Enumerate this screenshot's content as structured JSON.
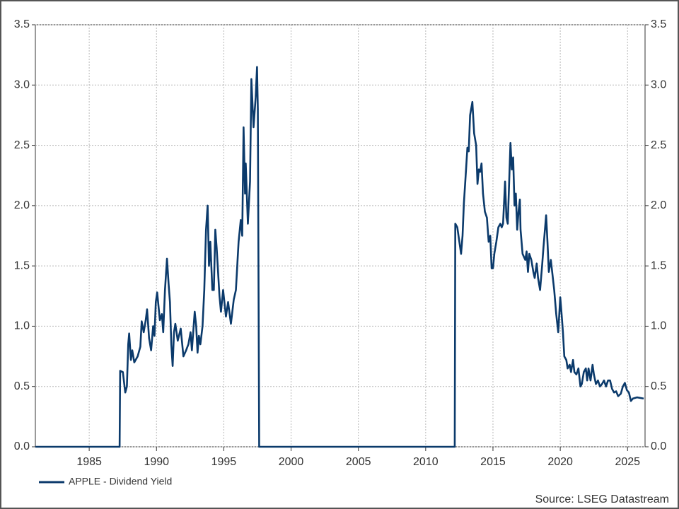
{
  "chart_data": {
    "type": "line",
    "series": [
      {
        "name": "APPLE - Dividend Yield",
        "color": "#0b3a6b",
        "x": [
          1981,
          1987.26,
          1987.3,
          1987.5,
          1987.68,
          1987.8,
          1987.9,
          1987.97,
          1988.1,
          1988.2,
          1988.35,
          1988.6,
          1988.8,
          1988.9,
          1989.05,
          1989.2,
          1989.3,
          1989.45,
          1989.6,
          1989.75,
          1989.85,
          1989.95,
          1990.05,
          1990.25,
          1990.4,
          1990.5,
          1990.63,
          1990.78,
          1990.9,
          1991.0,
          1991.1,
          1991.2,
          1991.3,
          1991.4,
          1991.58,
          1991.8,
          1992.0,
          1992.2,
          1992.37,
          1992.53,
          1992.63,
          1992.84,
          1992.95,
          1993.05,
          1993.15,
          1993.26,
          1993.42,
          1993.55,
          1993.68,
          1993.8,
          1993.9,
          1994.0,
          1994.15,
          1994.26,
          1994.37,
          1994.47,
          1994.68,
          1994.79,
          1994.95,
          1995.16,
          1995.32,
          1995.53,
          1995.74,
          1995.9,
          1996.1,
          1996.26,
          1996.37,
          1996.47,
          1996.58,
          1996.63,
          1996.79,
          1996.95,
          1997.05,
          1997.21,
          1997.37,
          1997.47,
          1997.53,
          1997.63,
          2012.16,
          2012.2,
          2012.35,
          2012.63,
          2012.74,
          2012.84,
          2013.0,
          2013.1,
          2013.2,
          2013.3,
          2013.47,
          2013.6,
          2013.75,
          2013.85,
          2013.95,
          2014.05,
          2014.15,
          2014.26,
          2014.4,
          2014.55,
          2014.68,
          2014.8,
          2014.9,
          2015.0,
          2015.1,
          2015.25,
          2015.4,
          2015.55,
          2015.65,
          2015.75,
          2015.9,
          2016.0,
          2016.1,
          2016.3,
          2016.4,
          2016.5,
          2016.6,
          2016.7,
          2016.8,
          2016.9,
          2017.0,
          2017.05,
          2017.2,
          2017.4,
          2017.5,
          2017.6,
          2017.7,
          2017.85,
          2018.0,
          2018.1,
          2018.25,
          2018.35,
          2018.5,
          2018.65,
          2018.75,
          2018.95,
          2019.05,
          2019.15,
          2019.3,
          2019.4,
          2019.55,
          2019.7,
          2019.85,
          2020.0,
          2020.1,
          2020.2,
          2020.3,
          2020.45,
          2020.55,
          2020.7,
          2020.8,
          2020.95,
          2021.05,
          2021.2,
          2021.35,
          2021.5,
          2021.6,
          2021.75,
          2021.9,
          2022.0,
          2022.1,
          2022.25,
          2022.4,
          2022.5,
          2022.65,
          2022.8,
          2022.95,
          2023.1,
          2023.25,
          2023.4,
          2023.55,
          2023.7,
          2023.85,
          2024.0,
          2024.15,
          2024.3,
          2024.5,
          2024.65,
          2024.8,
          2024.95,
          2025.1,
          2025.25,
          2025.4,
          2025.7,
          2026.2
        ],
        "values": [
          0,
          0,
          0.63,
          0.62,
          0.45,
          0.5,
          0.85,
          0.94,
          0.72,
          0.8,
          0.7,
          0.75,
          0.83,
          1.04,
          0.95,
          1.05,
          1.14,
          0.9,
          0.8,
          1.0,
          0.92,
          1.2,
          1.28,
          1.05,
          1.1,
          0.95,
          1.3,
          1.56,
          1.35,
          1.2,
          0.85,
          0.67,
          0.95,
          1.02,
          0.88,
          0.98,
          0.75,
          0.8,
          0.85,
          0.95,
          0.8,
          1.12,
          1.0,
          0.78,
          0.92,
          0.85,
          1.0,
          1.3,
          1.8,
          2.0,
          1.5,
          1.7,
          1.3,
          1.3,
          1.8,
          1.65,
          1.25,
          1.12,
          1.3,
          1.08,
          1.2,
          1.02,
          1.22,
          1.3,
          1.7,
          1.88,
          1.75,
          2.65,
          2.1,
          2.35,
          1.85,
          2.2,
          3.05,
          2.65,
          2.9,
          3.15,
          2.8,
          0,
          0,
          1.85,
          1.82,
          1.6,
          1.75,
          2.02,
          2.3,
          2.48,
          2.45,
          2.75,
          2.86,
          2.6,
          2.5,
          2.18,
          2.3,
          2.28,
          2.35,
          2.1,
          1.95,
          1.9,
          1.7,
          1.75,
          1.48,
          1.48,
          1.6,
          1.7,
          1.82,
          1.85,
          1.82,
          1.85,
          2.2,
          1.9,
          1.85,
          2.52,
          2.3,
          2.4,
          2.0,
          2.1,
          1.8,
          1.95,
          2.05,
          1.8,
          1.6,
          1.55,
          1.62,
          1.45,
          1.6,
          1.55,
          1.45,
          1.4,
          1.52,
          1.4,
          1.3,
          1.5,
          1.65,
          1.92,
          1.7,
          1.45,
          1.55,
          1.45,
          1.3,
          1.1,
          0.95,
          1.24,
          1.1,
          0.95,
          0.75,
          0.72,
          0.65,
          0.68,
          0.62,
          0.72,
          0.62,
          0.6,
          0.65,
          0.5,
          0.52,
          0.62,
          0.65,
          0.55,
          0.65,
          0.55,
          0.68,
          0.6,
          0.52,
          0.55,
          0.5,
          0.52,
          0.55,
          0.5,
          0.55,
          0.55,
          0.48,
          0.45,
          0.46,
          0.42,
          0.44,
          0.5,
          0.53,
          0.47,
          0.45,
          0.38,
          0.4,
          0.41,
          0.4
        ]
      }
    ],
    "xlim": [
      1981,
      2026.3
    ],
    "xticks": [
      1985,
      1990,
      1995,
      2000,
      2005,
      2010,
      2015,
      2020,
      2025
    ],
    "ylim": [
      0,
      3.5
    ],
    "yticks": [
      {
        "value": 0,
        "label": "0.0"
      },
      0.5,
      {
        "value": 1,
        "label": "1.0"
      },
      1.5,
      {
        "value": 2,
        "label": "2.0"
      },
      2.5,
      {
        "value": 3,
        "label": "3.0"
      },
      3.5
    ],
    "grid": true,
    "legend": "bottom-left",
    "source": "Source: LSEG Datastream"
  }
}
